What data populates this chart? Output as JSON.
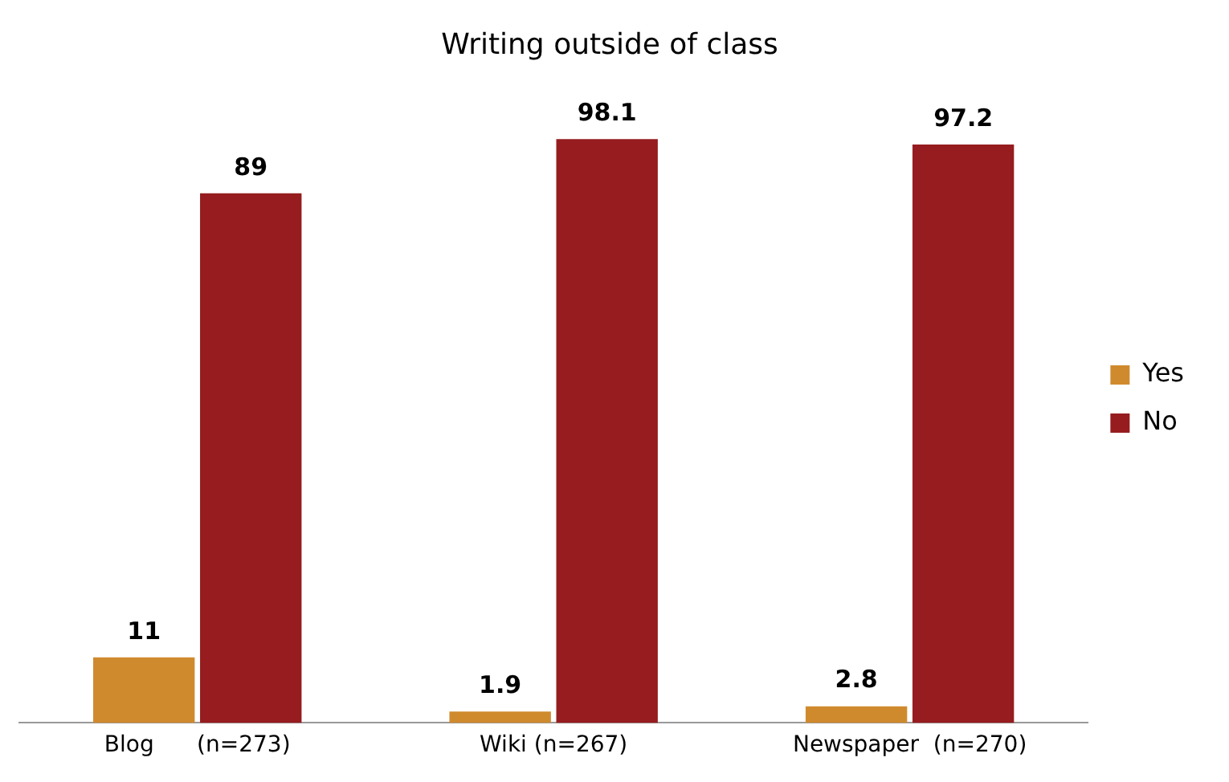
{
  "chart_data": {
    "type": "bar",
    "title": "Writing outside of class",
    "categories": [
      "Blog      (n=273)",
      "Wiki (n=267)",
      "Newspaper  (n=270)"
    ],
    "series": [
      {
        "name": "Yes",
        "color": "#d08a2e",
        "values": [
          11,
          1.9,
          2.8
        ]
      },
      {
        "name": "No",
        "color": "#961c1f",
        "values": [
          89,
          98.1,
          97.2
        ]
      }
    ],
    "data_labels": true,
    "legend": "right",
    "grid": false
  }
}
